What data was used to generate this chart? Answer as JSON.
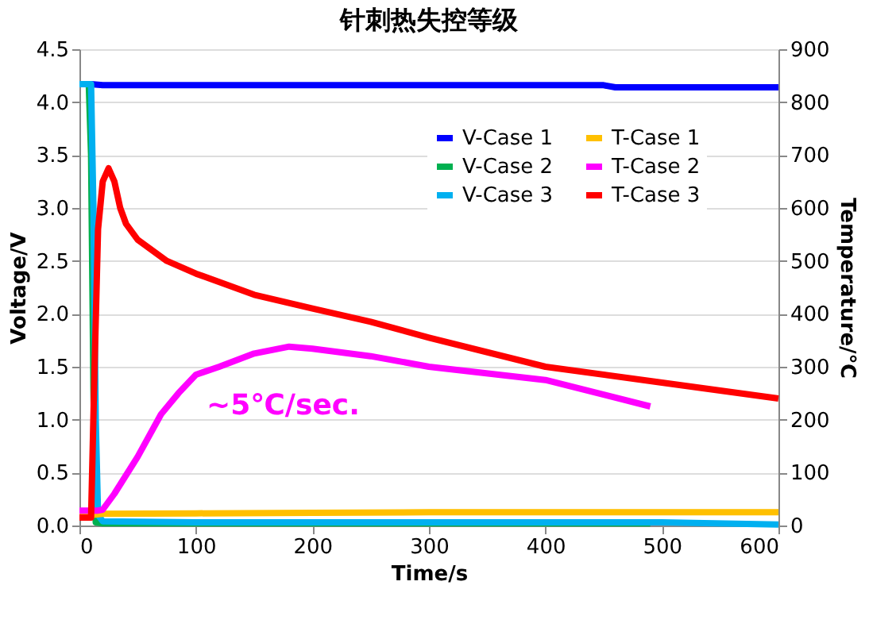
{
  "chart_data": {
    "type": "line",
    "title": "针刺热失控等级",
    "xlabel": "Time/s",
    "ylabel": "Voltage/V",
    "y2label": "Temperature/℃",
    "annotations": [
      "~5℃/sec."
    ],
    "xlim": [
      0,
      600
    ],
    "xticks": [
      0,
      100,
      200,
      300,
      400,
      500,
      600
    ],
    "ylim": [
      0,
      4.5
    ],
    "yticks": [
      {
        "value": 0,
        "label": "0.0"
      },
      0.5,
      {
        "value": 1,
        "label": "1.0"
      },
      1.5,
      {
        "value": 2,
        "label": "2.0"
      },
      2.5,
      {
        "value": 3,
        "label": "3.0"
      },
      3.5,
      {
        "value": 4,
        "label": "4.0"
      },
      4.5
    ],
    "y2lim": [
      0,
      900
    ],
    "y2ticks": [
      0,
      100,
      200,
      300,
      400,
      500,
      600,
      700,
      800,
      900
    ],
    "grid": "y",
    "legend": "top right",
    "series": [
      {
        "name": "V-Case 1",
        "color": "#0000ff",
        "x": [
          10,
          20,
          100,
          200,
          300,
          400,
          450,
          460,
          500,
          600
        ],
        "values": [
          4.17,
          4.16,
          4.16,
          4.16,
          4.16,
          4.16,
          4.16,
          4.14,
          4.14,
          4.14
        ]
      },
      {
        "name": "V-Case 2",
        "color": "#00b050",
        "x": [
          0,
          8,
          10,
          12,
          14,
          20,
          100,
          200,
          300,
          400,
          490
        ],
        "values": [
          4.17,
          4.17,
          3.5,
          1.3,
          0.03,
          0.02,
          0.02,
          0.02,
          0.02,
          0.02,
          0.02
        ]
      },
      {
        "name": "V-Case 3",
        "color": "#00b0f0",
        "x": [
          0,
          10,
          12,
          14,
          16,
          20,
          100,
          200,
          300,
          400,
          500,
          600
        ],
        "values": [
          4.17,
          4.17,
          3.0,
          1.0,
          0.1,
          0.04,
          0.03,
          0.03,
          0.03,
          0.03,
          0.03,
          0.01
        ]
      },
      {
        "name": "T-Case 1",
        "axis": "y2",
        "color": "#ffc000",
        "x": [
          0,
          10,
          20,
          100,
          200,
          300,
          400,
          500,
          600
        ],
        "values": [
          20,
          20,
          22,
          23,
          24,
          25,
          25,
          25,
          25
        ]
      },
      {
        "name": "T-Case 2",
        "axis": "y2",
        "color": "#ff00ff",
        "x": [
          0,
          15,
          20,
          30,
          50,
          70,
          85,
          100,
          120,
          150,
          180,
          200,
          250,
          300,
          400,
          490
        ],
        "values": [
          28,
          28,
          30,
          60,
          130,
          210,
          250,
          285,
          300,
          325,
          338,
          334,
          320,
          300,
          275,
          225
        ]
      },
      {
        "name": "T-Case 3",
        "axis": "y2",
        "color": "#ff0000",
        "x": [
          0,
          10,
          13,
          16,
          20,
          25,
          30,
          35,
          40,
          50,
          75,
          100,
          150,
          200,
          250,
          300,
          400,
          500,
          600
        ],
        "values": [
          15,
          15,
          300,
          560,
          650,
          675,
          650,
          600,
          570,
          540,
          500,
          476,
          436,
          410,
          385,
          355,
          300,
          270,
          240
        ]
      }
    ]
  }
}
